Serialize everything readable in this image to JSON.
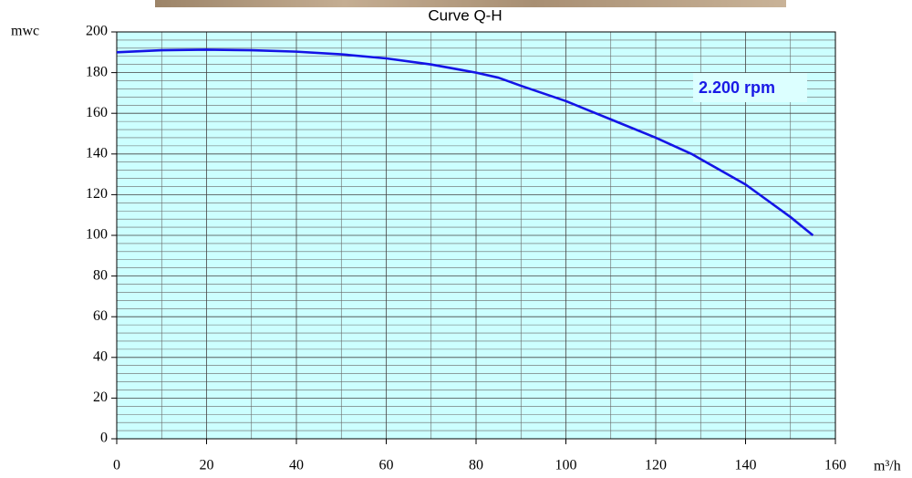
{
  "chart_data": {
    "type": "line",
    "title": "Curve Q-H",
    "x_label": "m³/h",
    "y_label": "mwc",
    "annotation": "2.200 rpm",
    "annotation_color": "#1a1ae6",
    "x": [
      0,
      10,
      20,
      30,
      40,
      50,
      60,
      70,
      80,
      85,
      90,
      100,
      110,
      120,
      128,
      140,
      150,
      155
    ],
    "values": [
      190,
      191,
      191.3,
      191,
      190.3,
      189,
      187,
      184,
      180,
      177.5,
      173.5,
      166,
      157,
      148,
      140,
      125,
      109,
      100
    ],
    "color": "#1414e6",
    "background": "#ccffff",
    "grid": true,
    "xlim": [
      0,
      160
    ],
    "xticks": [
      0,
      20,
      40,
      60,
      80,
      100,
      120,
      140,
      160
    ],
    "ylim": [
      0,
      200
    ],
    "yticks": [
      0,
      20,
      40,
      60,
      80,
      100,
      120,
      140,
      160,
      180,
      200
    ],
    "minor_xticks": [
      10,
      30,
      50,
      70,
      90,
      110,
      130,
      150
    ],
    "minor_yticks": [
      4,
      8,
      12,
      16,
      24,
      28,
      32,
      36,
      44,
      48,
      52,
      56,
      64,
      68,
      72,
      76,
      84,
      88,
      92,
      96,
      104,
      108,
      112,
      116,
      124,
      128,
      132,
      136,
      144,
      148,
      152,
      156,
      164,
      168,
      172,
      176,
      184,
      188,
      192,
      196
    ]
  }
}
